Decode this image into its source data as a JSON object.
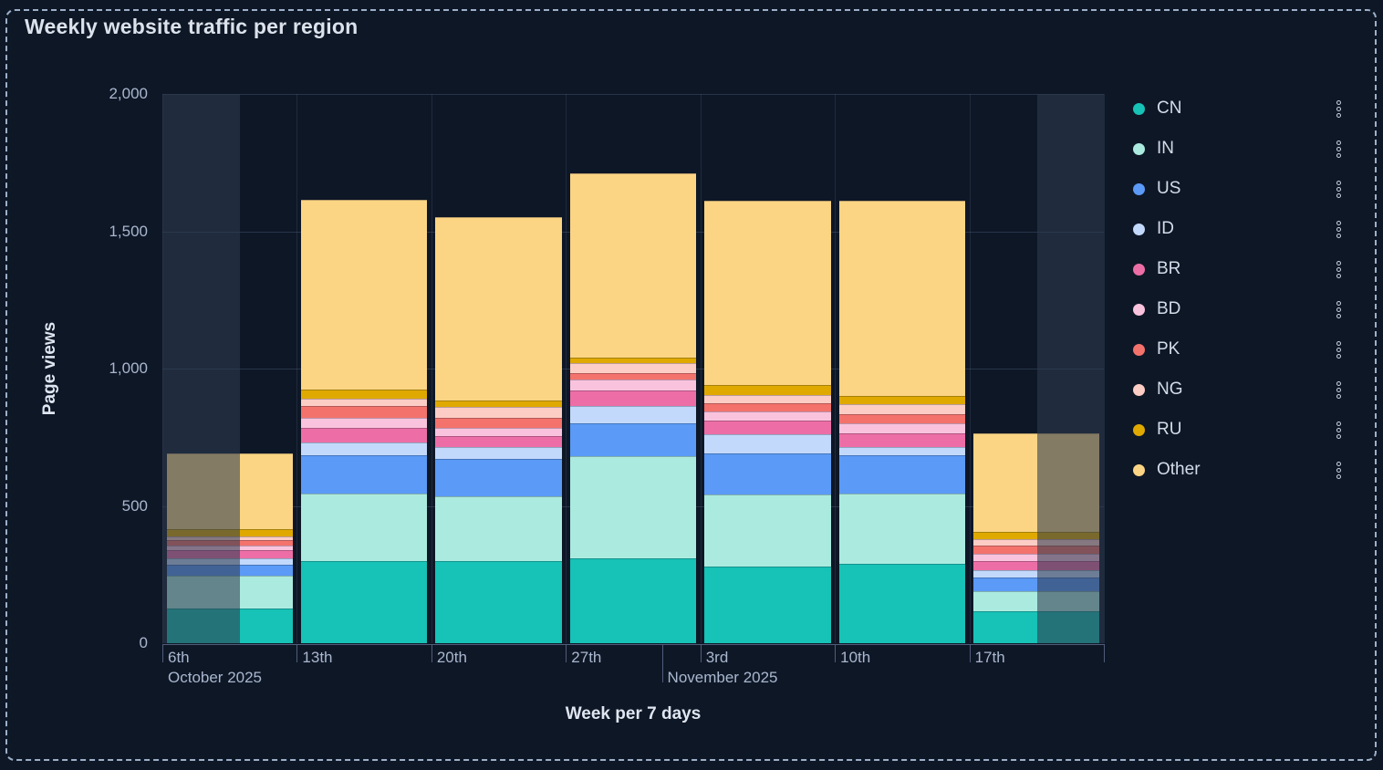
{
  "panel": {
    "title": "Weekly website traffic per region"
  },
  "chart_data": {
    "type": "bar",
    "stacked": true,
    "title": "Weekly website traffic per region",
    "xlabel": "Week per 7 days",
    "ylabel": "Page views",
    "ylim": [
      0,
      2000
    ],
    "y_ticks": [
      {
        "value": 0,
        "label": "0"
      },
      {
        "value": 500,
        "label": "500"
      },
      {
        "value": 1000,
        "label": "1,000"
      },
      {
        "value": 1500,
        "label": "1,500"
      },
      {
        "value": 2000,
        "label": "2,000"
      }
    ],
    "categories": [
      "6th",
      "13th",
      "20th",
      "27th",
      "3rd",
      "10th",
      "17th"
    ],
    "month_labels": [
      {
        "text": "October 2025",
        "week_index": 0,
        "day_fraction": 0,
        "show_tall_tick": false
      },
      {
        "text": "November 2025",
        "week_index": 3,
        "day_fraction": 0.714,
        "show_tall_tick": true
      }
    ],
    "grid": true,
    "legend_position": "right",
    "series": [
      {
        "name": "CN",
        "color": "#17c2b6",
        "values": [
          125,
          300,
          300,
          310,
          280,
          290,
          115
        ]
      },
      {
        "name": "IN",
        "color": "#abebdf",
        "values": [
          120,
          245,
          235,
          370,
          260,
          255,
          75
        ]
      },
      {
        "name": "US",
        "color": "#5b9af6",
        "values": [
          40,
          140,
          135,
          120,
          150,
          140,
          50
        ]
      },
      {
        "name": "ID",
        "color": "#c3d9fb",
        "values": [
          25,
          45,
          45,
          65,
          70,
          30,
          25
        ]
      },
      {
        "name": "BR",
        "color": "#ed6ea6",
        "values": [
          30,
          55,
          40,
          55,
          50,
          50,
          35
        ]
      },
      {
        "name": "BD",
        "color": "#fac3dd",
        "values": [
          15,
          35,
          30,
          40,
          35,
          35,
          25
        ]
      },
      {
        "name": "PK",
        "color": "#f4726c",
        "values": [
          20,
          45,
          35,
          25,
          30,
          35,
          30
        ]
      },
      {
        "name": "NG",
        "color": "#fccdc5",
        "values": [
          15,
          25,
          40,
          35,
          30,
          35,
          25
        ]
      },
      {
        "name": "RU",
        "color": "#e0a900",
        "values": [
          25,
          35,
          25,
          20,
          35,
          30,
          25
        ]
      },
      {
        "name": "Other",
        "color": "#fbd584",
        "values": [
          275,
          690,
          665,
          670,
          670,
          710,
          360
        ]
      }
    ],
    "week_totals": [
      690,
      1615,
      1550,
      1710,
      1610,
      1610,
      765
    ],
    "partial_bucket_masks": [
      {
        "from_fraction": 0.0,
        "to_fraction": 0.0824
      },
      {
        "from_fraction": 0.9293,
        "to_fraction": 1.0
      }
    ]
  },
  "legend": {
    "menu_icon": "kebab-dots-icon"
  }
}
